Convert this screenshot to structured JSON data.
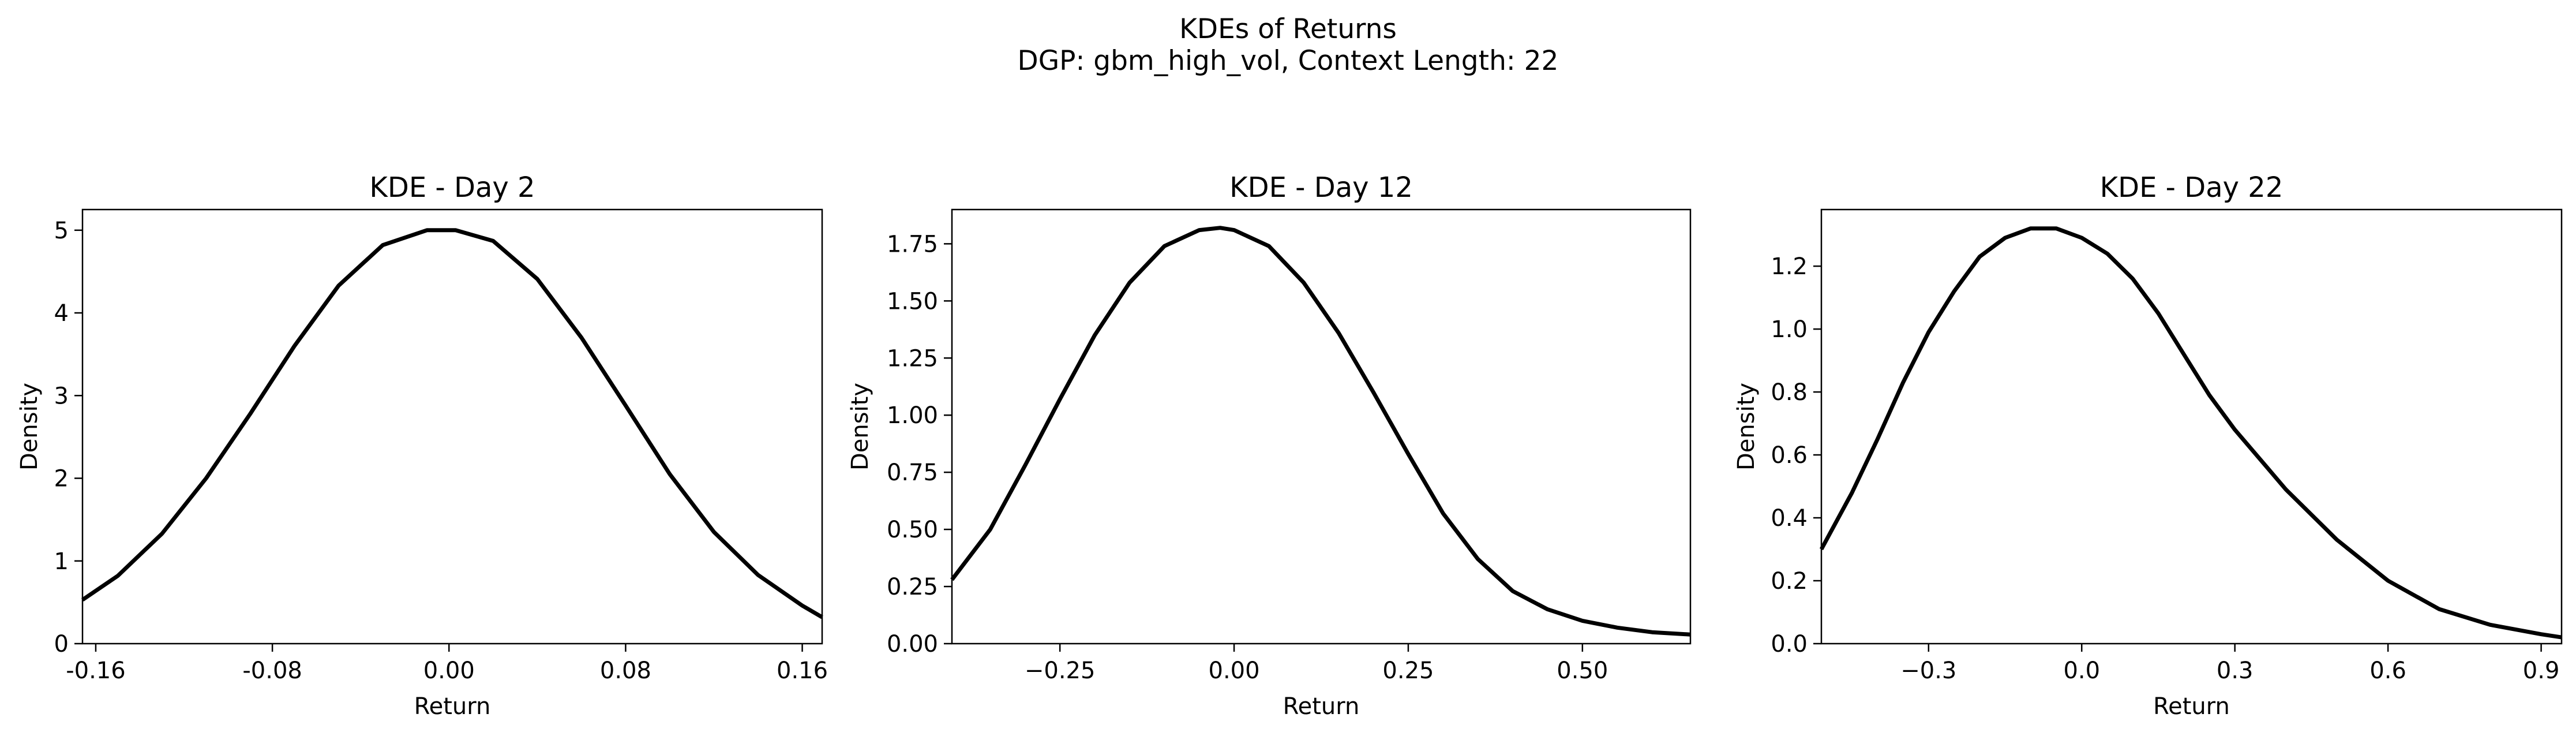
{
  "figure": {
    "title": "KDEs of Returns",
    "subtitle": "DGP: gbm_high_vol, Context Length: 22"
  },
  "chart_data": [
    {
      "type": "line",
      "title": "KDE - Day 2",
      "xlabel": "Return",
      "ylabel": "Density",
      "xlim": [
        -0.166,
        0.169
      ],
      "ylim": [
        0,
        5.25
      ],
      "xticks": [
        -0.16,
        -0.08,
        0.0,
        0.08,
        0.16
      ],
      "xtick_labels": [
        "-0.16",
        "-0.08",
        "0.00",
        "0.08",
        "0.16"
      ],
      "yticks": [
        0,
        1,
        2,
        3,
        4,
        5
      ],
      "ytick_labels": [
        "0",
        "1",
        "2",
        "3",
        "4",
        "5"
      ],
      "grid": false,
      "series": [
        {
          "color": "#000000",
          "x": [
            -0.166,
            -0.15,
            -0.13,
            -0.11,
            -0.09,
            -0.07,
            -0.05,
            -0.03,
            -0.01,
            0.003,
            0.02,
            0.04,
            0.06,
            0.08,
            0.1,
            0.12,
            0.14,
            0.16,
            0.169
          ],
          "y": [
            0.53,
            0.82,
            1.33,
            2.0,
            2.78,
            3.6,
            4.33,
            4.82,
            5.0,
            5.0,
            4.87,
            4.41,
            3.7,
            2.88,
            2.05,
            1.35,
            0.83,
            0.46,
            0.32
          ]
        }
      ]
    },
    {
      "type": "line",
      "title": "KDE - Day 12",
      "xlabel": "Return",
      "ylabel": "Density",
      "xlim": [
        -0.405,
        0.655
      ],
      "ylim": [
        0,
        1.9
      ],
      "xticks": [
        -0.25,
        0.0,
        0.25,
        0.5
      ],
      "xtick_labels": [
        "−0.25",
        "0.00",
        "0.25",
        "0.50"
      ],
      "yticks": [
        0.0,
        0.25,
        0.5,
        0.75,
        1.0,
        1.25,
        1.5,
        1.75
      ],
      "ytick_labels": [
        "0.00",
        "0.25",
        "0.50",
        "0.75",
        "1.00",
        "1.25",
        "1.50",
        "1.75"
      ],
      "grid": false,
      "series": [
        {
          "color": "#000000",
          "x": [
            -0.405,
            -0.35,
            -0.3,
            -0.25,
            -0.2,
            -0.15,
            -0.1,
            -0.05,
            -0.02,
            0.0,
            0.05,
            0.1,
            0.15,
            0.2,
            0.25,
            0.3,
            0.35,
            0.4,
            0.45,
            0.5,
            0.55,
            0.6,
            0.655
          ],
          "y": [
            0.28,
            0.5,
            0.78,
            1.07,
            1.35,
            1.58,
            1.74,
            1.81,
            1.82,
            1.81,
            1.74,
            1.58,
            1.36,
            1.1,
            0.83,
            0.57,
            0.37,
            0.23,
            0.15,
            0.1,
            0.07,
            0.05,
            0.04
          ]
        }
      ]
    },
    {
      "type": "line",
      "title": "KDE - Day 22",
      "xlabel": "Return",
      "ylabel": "Density",
      "xlim": [
        -0.51,
        0.94
      ],
      "ylim": [
        0,
        1.38
      ],
      "xticks": [
        -0.3,
        0.0,
        0.3,
        0.6,
        0.9
      ],
      "xtick_labels": [
        "−0.3",
        "0.0",
        "0.3",
        "0.6",
        "0.9"
      ],
      "yticks": [
        0.0,
        0.2,
        0.4,
        0.6,
        0.8,
        1.0,
        1.2
      ],
      "ytick_labels": [
        "0.0",
        "0.2",
        "0.4",
        "0.6",
        "0.8",
        "1.0",
        "1.2"
      ],
      "grid": false,
      "series": [
        {
          "color": "#000000",
          "x": [
            -0.51,
            -0.45,
            -0.4,
            -0.35,
            -0.3,
            -0.25,
            -0.2,
            -0.15,
            -0.1,
            -0.05,
            0.0,
            0.05,
            0.1,
            0.15,
            0.2,
            0.25,
            0.3,
            0.4,
            0.5,
            0.6,
            0.7,
            0.8,
            0.9,
            0.94
          ],
          "y": [
            0.3,
            0.48,
            0.65,
            0.83,
            0.99,
            1.12,
            1.23,
            1.29,
            1.32,
            1.32,
            1.29,
            1.24,
            1.16,
            1.05,
            0.92,
            0.79,
            0.68,
            0.49,
            0.33,
            0.2,
            0.11,
            0.06,
            0.03,
            0.02
          ]
        }
      ]
    }
  ]
}
